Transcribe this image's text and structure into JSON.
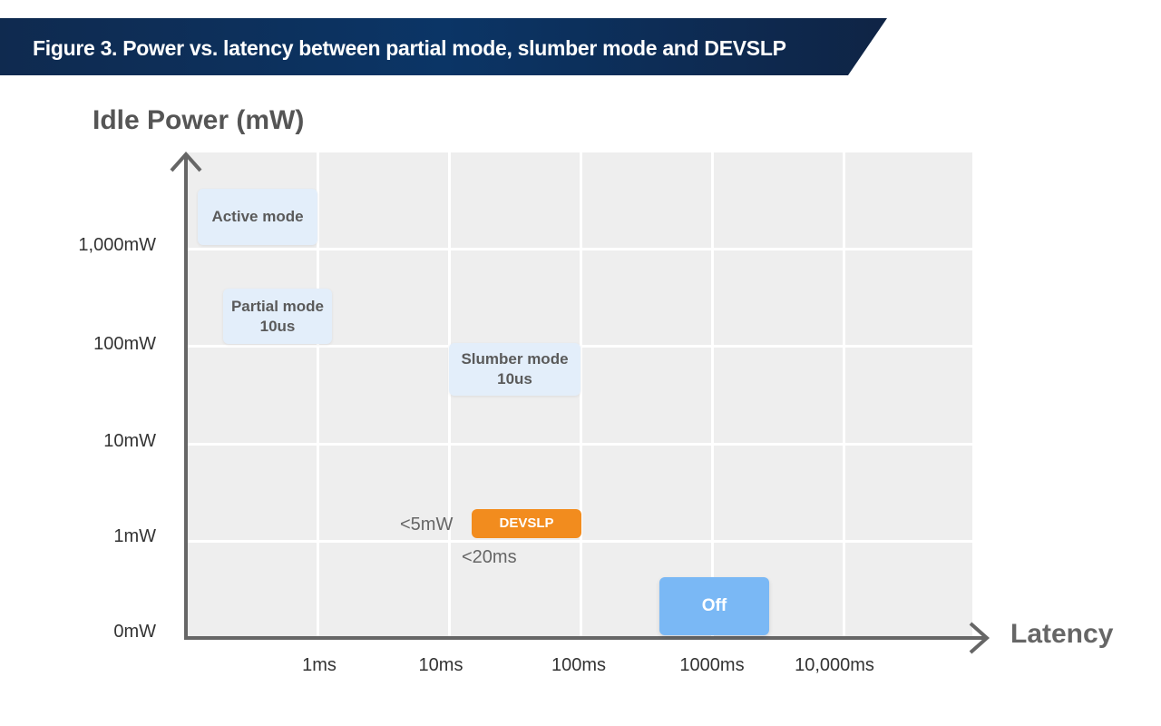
{
  "title": "Figure 3. Power vs. latency between partial mode, slumber mode and DEVSLP",
  "y_axis": {
    "label": "Idle Power (mW)",
    "ticks": [
      "1,000mW",
      "100mW",
      "10mW",
      "1mW",
      "0mW"
    ]
  },
  "x_axis": {
    "label": "Latency",
    "ticks": [
      "1ms",
      "10ms",
      "100ms",
      "1000ms",
      "10,000ms"
    ]
  },
  "modes": {
    "active": {
      "label": "Active mode"
    },
    "partial": {
      "line1": "Partial mode",
      "line2": "10us"
    },
    "slumber": {
      "line1": "Slumber mode",
      "line2": "10us"
    },
    "devslp": {
      "label": "DEVSLP",
      "power": "<5mW",
      "latency": "<20ms"
    },
    "off": {
      "label": "Off"
    }
  },
  "colors": {
    "banner": "#0b3566",
    "box": "#e3eefa",
    "devslp": "#f28c1e",
    "off": "#7ab8f5",
    "axis": "#666666"
  }
}
